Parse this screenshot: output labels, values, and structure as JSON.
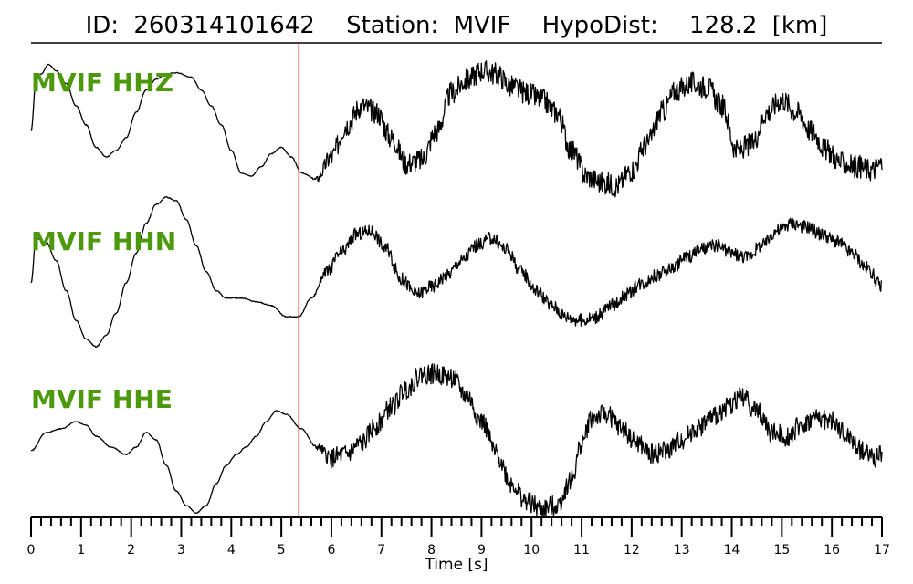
{
  "chart_data": {
    "type": "line",
    "title": {
      "id_label": "ID:",
      "id_value": "260314101642",
      "station_label": "Station:",
      "station_value": "MVIF",
      "dist_label": "HypoDist:",
      "dist_value": "128.2",
      "dist_unit": "[km]"
    },
    "xlabel": "Time [s]",
    "xlim": [
      0,
      17
    ],
    "x_ticks": [
      0,
      1,
      2,
      3,
      4,
      5,
      6,
      7,
      8,
      9,
      10,
      11,
      12,
      13,
      14,
      15,
      16,
      17
    ],
    "minor_tick_step": 0.2,
    "pick_time": 5.35,
    "pick_color": "#e8262b",
    "label_color": "#4d990c",
    "trace_color": "#000000",
    "grid": false,
    "series": [
      {
        "name": "MVIF HHZ",
        "points": [
          [
            0,
            -0.2
          ],
          [
            0.1,
            0.6
          ],
          [
            0.2,
            0.7
          ],
          [
            0.35,
            0.85
          ],
          [
            0.5,
            0.75
          ],
          [
            0.7,
            0.55
          ],
          [
            0.9,
            0.2
          ],
          [
            1.1,
            -0.1
          ],
          [
            1.3,
            -0.45
          ],
          [
            1.5,
            -0.6
          ],
          [
            1.7,
            -0.5
          ],
          [
            1.9,
            -0.3
          ],
          [
            2.1,
            0.1
          ],
          [
            2.3,
            0.45
          ],
          [
            2.5,
            0.62
          ],
          [
            2.7,
            0.7
          ],
          [
            2.9,
            0.72
          ],
          [
            3.2,
            0.65
          ],
          [
            3.4,
            0.45
          ],
          [
            3.6,
            0.2
          ],
          [
            3.8,
            -0.1
          ],
          [
            4.0,
            -0.5
          ],
          [
            4.2,
            -0.85
          ],
          [
            4.4,
            -0.9
          ],
          [
            4.6,
            -0.75
          ],
          [
            4.8,
            -0.55
          ],
          [
            5.0,
            -0.45
          ],
          [
            5.2,
            -0.6
          ],
          [
            5.4,
            -0.85
          ],
          [
            5.7,
            -0.95
          ],
          [
            6.0,
            -0.6
          ],
          [
            6.3,
            -0.1
          ],
          [
            6.6,
            0.2
          ],
          [
            6.9,
            0.1
          ],
          [
            7.2,
            -0.3
          ],
          [
            7.5,
            -0.7
          ],
          [
            7.8,
            -0.65
          ],
          [
            8.1,
            -0.2
          ],
          [
            8.4,
            0.4
          ],
          [
            8.7,
            0.6
          ],
          [
            9.0,
            0.75
          ],
          [
            9.3,
            0.7
          ],
          [
            9.6,
            0.5
          ],
          [
            9.9,
            0.4
          ],
          [
            10.2,
            0.3
          ],
          [
            10.5,
            0.1
          ],
          [
            10.8,
            -0.5
          ],
          [
            11.1,
            -0.9
          ],
          [
            11.4,
            -1.0
          ],
          [
            11.7,
            -1.05
          ],
          [
            12.0,
            -0.8
          ],
          [
            12.3,
            -0.4
          ],
          [
            12.6,
            0.1
          ],
          [
            12.9,
            0.45
          ],
          [
            13.2,
            0.55
          ],
          [
            13.5,
            0.5
          ],
          [
            13.8,
            0.2
          ],
          [
            14.1,
            -0.5
          ],
          [
            14.4,
            -0.4
          ],
          [
            14.7,
            0.1
          ],
          [
            15.0,
            0.3
          ],
          [
            15.3,
            0.1
          ],
          [
            15.6,
            -0.2
          ],
          [
            15.9,
            -0.5
          ],
          [
            16.2,
            -0.7
          ],
          [
            16.5,
            -0.75
          ],
          [
            16.8,
            -0.8
          ],
          [
            17.0,
            -0.7
          ]
        ],
        "noise_from": 5.6,
        "noise_amp": 0.18
      },
      {
        "name": "MVIF HHN",
        "points": [
          [
            0,
            -0.1
          ],
          [
            0.1,
            0.5
          ],
          [
            0.3,
            0.45
          ],
          [
            0.5,
            0.2
          ],
          [
            0.7,
            -0.2
          ],
          [
            0.9,
            -0.6
          ],
          [
            1.1,
            -0.85
          ],
          [
            1.3,
            -0.95
          ],
          [
            1.5,
            -0.8
          ],
          [
            1.7,
            -0.5
          ],
          [
            1.9,
            -0.1
          ],
          [
            2.1,
            0.3
          ],
          [
            2.3,
            0.7
          ],
          [
            2.5,
            0.95
          ],
          [
            2.7,
            1.05
          ],
          [
            2.9,
            1.0
          ],
          [
            3.1,
            0.75
          ],
          [
            3.3,
            0.4
          ],
          [
            3.5,
            0.05
          ],
          [
            3.7,
            -0.2
          ],
          [
            3.9,
            -0.3
          ],
          [
            4.2,
            -0.3
          ],
          [
            4.5,
            -0.35
          ],
          [
            4.8,
            -0.4
          ],
          [
            5.1,
            -0.55
          ],
          [
            5.35,
            -0.55
          ],
          [
            5.6,
            -0.3
          ],
          [
            5.9,
            0.05
          ],
          [
            6.2,
            0.3
          ],
          [
            6.5,
            0.55
          ],
          [
            6.8,
            0.6
          ],
          [
            7.1,
            0.35
          ],
          [
            7.4,
            -0.05
          ],
          [
            7.7,
            -0.25
          ],
          [
            8.0,
            -0.15
          ],
          [
            8.3,
            0.0
          ],
          [
            8.6,
            0.2
          ],
          [
            8.9,
            0.4
          ],
          [
            9.2,
            0.5
          ],
          [
            9.5,
            0.35
          ],
          [
            9.8,
            0.05
          ],
          [
            10.1,
            -0.2
          ],
          [
            10.4,
            -0.4
          ],
          [
            10.7,
            -0.55
          ],
          [
            11.0,
            -0.6
          ],
          [
            11.3,
            -0.55
          ],
          [
            11.6,
            -0.4
          ],
          [
            11.9,
            -0.25
          ],
          [
            12.2,
            -0.1
          ],
          [
            12.5,
            0.0
          ],
          [
            12.8,
            0.1
          ],
          [
            13.1,
            0.25
          ],
          [
            13.4,
            0.35
          ],
          [
            13.7,
            0.4
          ],
          [
            14.0,
            0.3
          ],
          [
            14.3,
            0.25
          ],
          [
            14.6,
            0.4
          ],
          [
            14.9,
            0.6
          ],
          [
            15.2,
            0.7
          ],
          [
            15.5,
            0.65
          ],
          [
            15.8,
            0.55
          ],
          [
            16.1,
            0.45
          ],
          [
            16.4,
            0.3
          ],
          [
            16.7,
            0.1
          ],
          [
            17.0,
            -0.15
          ]
        ],
        "noise_from": 5.6,
        "noise_amp": 0.09
      },
      {
        "name": "MVIF HHE",
        "points": [
          [
            0,
            -0.3
          ],
          [
            0.3,
            -0.05
          ],
          [
            0.6,
            0.0
          ],
          [
            0.9,
            0.1
          ],
          [
            1.1,
            0.05
          ],
          [
            1.3,
            -0.1
          ],
          [
            1.6,
            -0.25
          ],
          [
            1.9,
            -0.35
          ],
          [
            2.1,
            -0.25
          ],
          [
            2.3,
            -0.05
          ],
          [
            2.5,
            -0.15
          ],
          [
            2.7,
            -0.5
          ],
          [
            2.9,
            -0.85
          ],
          [
            3.1,
            -1.05
          ],
          [
            3.3,
            -1.15
          ],
          [
            3.5,
            -1.05
          ],
          [
            3.7,
            -0.75
          ],
          [
            3.9,
            -0.5
          ],
          [
            4.1,
            -0.35
          ],
          [
            4.3,
            -0.25
          ],
          [
            4.5,
            -0.1
          ],
          [
            4.7,
            0.1
          ],
          [
            4.9,
            0.25
          ],
          [
            5.1,
            0.2
          ],
          [
            5.4,
            0.0
          ],
          [
            5.7,
            -0.25
          ],
          [
            6.0,
            -0.4
          ],
          [
            6.3,
            -0.35
          ],
          [
            6.6,
            -0.2
          ],
          [
            6.9,
            0.05
          ],
          [
            7.2,
            0.3
          ],
          [
            7.5,
            0.55
          ],
          [
            7.8,
            0.75
          ],
          [
            8.1,
            0.75
          ],
          [
            8.4,
            0.7
          ],
          [
            8.7,
            0.45
          ],
          [
            9.0,
            0.1
          ],
          [
            9.3,
            -0.35
          ],
          [
            9.6,
            -0.75
          ],
          [
            9.9,
            -1.0
          ],
          [
            10.2,
            -1.1
          ],
          [
            10.5,
            -1.05
          ],
          [
            10.8,
            -0.7
          ],
          [
            11.0,
            -0.2
          ],
          [
            11.2,
            0.15
          ],
          [
            11.5,
            0.2
          ],
          [
            11.8,
            0.0
          ],
          [
            12.1,
            -0.2
          ],
          [
            12.4,
            -0.35
          ],
          [
            12.7,
            -0.3
          ],
          [
            13.0,
            -0.15
          ],
          [
            13.3,
            0.0
          ],
          [
            13.6,
            0.15
          ],
          [
            13.9,
            0.3
          ],
          [
            14.2,
            0.45
          ],
          [
            14.5,
            0.25
          ],
          [
            14.8,
            -0.05
          ],
          [
            15.1,
            -0.1
          ],
          [
            15.4,
            0.05
          ],
          [
            15.7,
            0.15
          ],
          [
            16.0,
            0.1
          ],
          [
            16.3,
            -0.1
          ],
          [
            16.6,
            -0.3
          ],
          [
            16.9,
            -0.4
          ],
          [
            17.0,
            -0.35
          ]
        ],
        "noise_from": 5.6,
        "noise_amp": 0.14
      }
    ]
  }
}
